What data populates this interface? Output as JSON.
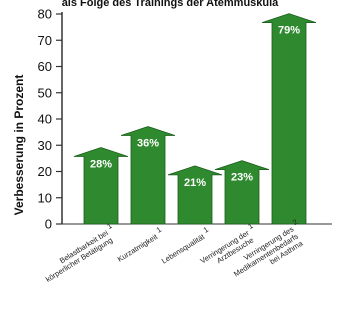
{
  "chart_data": {
    "type": "bar",
    "title": "als Folge des Trainings der Atemmuskula",
    "ylabel": "Verbesserung in Prozent",
    "xlabel": "",
    "ylim": [
      0,
      80
    ],
    "yticks": [
      0,
      10,
      20,
      30,
      40,
      50,
      60,
      70,
      80
    ],
    "grid": false,
    "legend": "none",
    "bar_style": "arrow",
    "categories": [
      {
        "lines": [
          "Belastbarkeit bei",
          "körperlicher Betätigung"
        ],
        "mark": "1"
      },
      {
        "lines": [
          "Kurzatmigkeit"
        ],
        "mark": "1"
      },
      {
        "lines": [
          "Lebensqualität"
        ],
        "mark": "1"
      },
      {
        "lines": [
          "Verringerung der",
          "Arztbesuche"
        ],
        "mark": "1"
      },
      {
        "lines": [
          "Verringerung des",
          "Medikamentenbedarfs",
          "bei Asthma"
        ],
        "mark": "2"
      }
    ],
    "values": [
      28,
      36,
      21,
      23,
      79
    ],
    "value_labels": [
      "28%",
      "36%",
      "21%",
      "23%",
      "79%"
    ],
    "colors": {
      "bar": "#2f8a2f",
      "bar_dark": "#1a5e1a",
      "axis": "#333333"
    }
  }
}
